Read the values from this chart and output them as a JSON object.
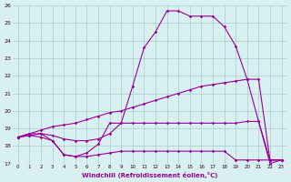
{
  "xlabel": "Windchill (Refroidissement éolien,°C)",
  "x_hours": [
    0,
    1,
    2,
    3,
    4,
    5,
    6,
    7,
    8,
    9,
    10,
    11,
    12,
    13,
    14,
    15,
    16,
    17,
    18,
    19,
    20,
    21,
    22,
    23
  ],
  "line1": [
    18.5,
    18.7,
    18.7,
    18.3,
    17.5,
    17.4,
    17.6,
    18.1,
    19.3,
    19.3,
    21.4,
    23.6,
    24.5,
    25.7,
    25.7,
    25.4,
    25.4,
    25.4,
    24.8,
    23.7,
    21.8,
    19.4,
    17.0,
    17.2
  ],
  "line2": [
    18.5,
    18.7,
    18.9,
    19.1,
    19.2,
    19.3,
    19.5,
    19.7,
    19.9,
    20.0,
    20.2,
    20.4,
    20.6,
    20.8,
    21.0,
    21.2,
    21.4,
    21.5,
    21.6,
    21.7,
    21.8,
    21.8,
    17.2,
    17.2
  ],
  "line3": [
    18.5,
    18.6,
    18.7,
    18.6,
    18.4,
    18.3,
    18.3,
    18.4,
    18.7,
    19.3,
    19.3,
    19.3,
    19.3,
    19.3,
    19.3,
    19.3,
    19.3,
    19.3,
    19.3,
    19.3,
    19.4,
    19.4,
    17.2,
    17.2
  ],
  "line4": [
    18.5,
    18.6,
    18.5,
    18.3,
    17.5,
    17.4,
    17.4,
    17.5,
    17.6,
    17.7,
    17.7,
    17.7,
    17.7,
    17.7,
    17.7,
    17.7,
    17.7,
    17.7,
    17.7,
    17.2,
    17.2,
    17.2,
    17.2,
    17.2
  ],
  "line_color": "#990099",
  "bg_color": "#d8f0f0",
  "grid_color": "#aacccc",
  "ylim": [
    17,
    26
  ],
  "yticks": [
    17,
    18,
    19,
    20,
    21,
    22,
    23,
    24,
    25,
    26
  ]
}
